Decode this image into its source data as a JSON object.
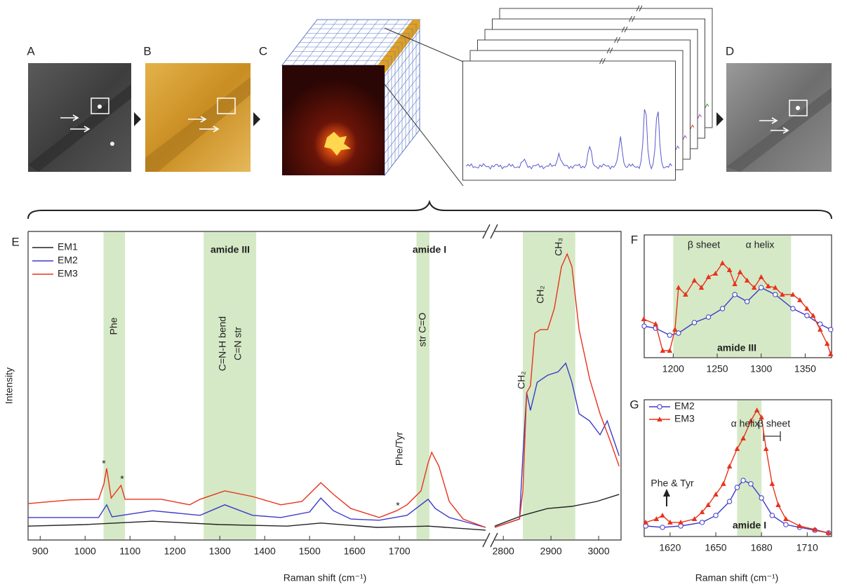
{
  "figure_labels": [
    "A",
    "B",
    "C",
    "D"
  ],
  "chart_data": [
    {
      "type": "line",
      "label": "E",
      "ylabel": "Intensity",
      "xlabel": "Raman shift (cm⁻¹)",
      "xlim": [
        873,
        1892
      ],
      "xticks": [
        900,
        1000,
        1100,
        1200,
        1300,
        1400,
        1500,
        1600,
        1700
      ],
      "ylim": [
        0,
        100
      ],
      "legend": "upper left",
      "highlight_ranges": [
        [
          1041,
          1089
        ],
        [
          1264,
          1381
        ],
        [
          1738,
          1767
        ]
      ],
      "annotations": [
        "amide III",
        "amide I",
        "Phe",
        "C=N-H bend",
        "C=N str",
        "str C=O",
        "Phe/Tyr",
        "*",
        "*",
        "*"
      ],
      "series": [
        {
          "name": "EM1",
          "color": "#222222",
          "x": [
            873,
            1000,
            1150,
            1300,
            1450,
            1525,
            1650,
            1764,
            1892
          ],
          "values": [
            4.5,
            5.0,
            6.1,
            5.0,
            4.5,
            5.5,
            4.1,
            4.5,
            3.2
          ]
        },
        {
          "name": "EM2",
          "color": "#3b3bc8",
          "x": [
            873,
            1030,
            1048,
            1060,
            1150,
            1256,
            1311,
            1373,
            1436,
            1500,
            1525,
            1553,
            1592,
            1655,
            1717,
            1764,
            1780,
            1811,
            1892
          ],
          "values": [
            7.3,
            7.3,
            11.4,
            7.5,
            9.5,
            8.0,
            11.4,
            8.0,
            7.3,
            9.1,
            13.6,
            9.5,
            6.8,
            6.4,
            8.0,
            13.2,
            10.2,
            7.3,
            4.1
          ]
        },
        {
          "name": "EM3",
          "color": "#e8331c",
          "x": [
            873,
            967,
            1030,
            1042,
            1048,
            1058,
            1080,
            1089,
            1170,
            1233,
            1256,
            1311,
            1373,
            1436,
            1483,
            1525,
            1553,
            1592,
            1655,
            1694,
            1717,
            1748,
            1764,
            1772,
            1788,
            1811,
            1842,
            1892
          ],
          "values": [
            11.8,
            13.0,
            13.2,
            18.2,
            23.2,
            13.6,
            17.7,
            13.2,
            13.2,
            11.4,
            13.2,
            15.9,
            14.1,
            11.4,
            12.5,
            18.6,
            14.8,
            10.2,
            7.3,
            9.5,
            11.4,
            15.9,
            25.0,
            28.4,
            23.9,
            12.5,
            6.8,
            4.1
          ]
        }
      ]
    },
    {
      "type": "line",
      "xlim": [
        2782,
        3047
      ],
      "xticks": [
        2800,
        2900,
        3000
      ],
      "ylim": [
        0,
        100
      ],
      "highlight_ranges": [
        [
          2841,
          2951
        ]
      ],
      "annotations": [
        "CH₂",
        "CH₂",
        "CH₃"
      ],
      "series": [
        {
          "color": "#222222",
          "x": [
            2782,
            2841,
            2893,
            2944,
            2996,
            3043
          ],
          "values": [
            4.5,
            8.0,
            10.2,
            10.9,
            12.5,
            14.8
          ]
        },
        {
          "color": "#3b3bc8",
          "x": [
            2782,
            2834,
            2841,
            2849,
            2857,
            2871,
            2893,
            2915,
            2931,
            2944,
            2959,
            2981,
            3003,
            3018,
            3043
          ],
          "values": [
            4.1,
            6.8,
            27.3,
            47.7,
            42.0,
            51.1,
            53.4,
            54.5,
            57.3,
            51.1,
            40.9,
            38.6,
            34.1,
            38.6,
            27.3
          ]
        },
        {
          "color": "#e8331c",
          "x": [
            2782,
            2834,
            2841,
            2849,
            2857,
            2866,
            2878,
            2893,
            2907,
            2922,
            2934,
            2944,
            2959,
            2981,
            3003,
            3025,
            3043
          ],
          "values": [
            4.1,
            6.8,
            15.9,
            47.7,
            50.0,
            67.0,
            68.2,
            68.2,
            75.0,
            88.6,
            92.7,
            88.6,
            68.2,
            52.3,
            40.9,
            31.8,
            23.9
          ]
        }
      ]
    },
    {
      "type": "line",
      "label": "F",
      "xlim": [
        1167,
        1380
      ],
      "xticks": [
        1200,
        1250,
        1300,
        1350
      ],
      "ylim": [
        0,
        100
      ],
      "highlight_ranges": [
        [
          1200,
          1334
        ]
      ],
      "annotations": [
        "β sheet",
        "α helix",
        "amide III"
      ],
      "series": [
        {
          "color": "#3b3bc8",
          "marker": "circle",
          "x": [
            1167,
            1180,
            1196,
            1206,
            1224,
            1240,
            1256,
            1270,
            1284,
            1300,
            1316,
            1336,
            1352,
            1367,
            1379
          ],
          "values": [
            25.7,
            24.0,
            18.3,
            20.0,
            28.6,
            33.1,
            40.0,
            51.4,
            45.7,
            57.1,
            51.4,
            40.0,
            34.3,
            27.4,
            22.9
          ]
        },
        {
          "color": "#e8331c",
          "marker": "triangle",
          "x": [
            1166.5,
            1180,
            1188,
            1196,
            1202,
            1206,
            1214,
            1224,
            1232,
            1240,
            1248,
            1256,
            1264,
            1270,
            1276,
            1284,
            1292,
            1300,
            1308,
            1316,
            1324,
            1336,
            1344,
            1352,
            1359,
            1367,
            1375,
            1379
          ],
          "values": [
            31.4,
            27.4,
            5.7,
            5.7,
            22.9,
            57.1,
            51.4,
            62.9,
            57.1,
            65.7,
            68.6,
            77.1,
            71.4,
            60.0,
            69.7,
            62.9,
            57.1,
            65.7,
            58.3,
            57.1,
            51.4,
            51.4,
            46.9,
            40.0,
            34.3,
            22.9,
            11.4,
            2.9
          ]
        }
      ]
    },
    {
      "type": "line",
      "label": "G",
      "xlabel": "Raman shift (cm⁻¹)",
      "xlim": [
        1603,
        1726
      ],
      "xticks": [
        1620,
        1650,
        1680,
        1710
      ],
      "ylim": [
        0,
        100
      ],
      "legend": "upper left",
      "highlight_ranges": [
        [
          1664,
          1680
        ]
      ],
      "annotations": [
        "α helix",
        "β sheet",
        "Phe & Tyr",
        "amide I"
      ],
      "series": [
        {
          "name": "EM2",
          "color": "#3b3bc8",
          "marker": "circle",
          "x": [
            1604,
            1615,
            1627,
            1641,
            1650,
            1659,
            1664,
            1668,
            1673,
            1680,
            1687,
            1696,
            1705,
            1715,
            1724
          ],
          "values": [
            7.7,
            6.7,
            7.7,
            10.3,
            15.4,
            25.6,
            35.9,
            41.0,
            38.5,
            28.2,
            15.4,
            8.7,
            6.7,
            4.6,
            2.6
          ]
        },
        {
          "name": "EM3",
          "color": "#e8331c",
          "marker": "triangle",
          "x": [
            1604,
            1611,
            1615,
            1620,
            1627,
            1636,
            1641,
            1645,
            1650,
            1655,
            1659,
            1664,
            1668,
            1673,
            1677,
            1680,
            1683,
            1687,
            1691,
            1696,
            1705,
            1715,
            1724
          ],
          "values": [
            10.3,
            12.8,
            15.4,
            10.3,
            10.3,
            12.8,
            17.9,
            23.1,
            30.8,
            38.5,
            51.3,
            64.1,
            71.8,
            84.6,
            92.3,
            87.2,
            64.1,
            38.5,
            23.1,
            12.8,
            7.7,
            5.1,
            2.6
          ]
        }
      ]
    }
  ]
}
